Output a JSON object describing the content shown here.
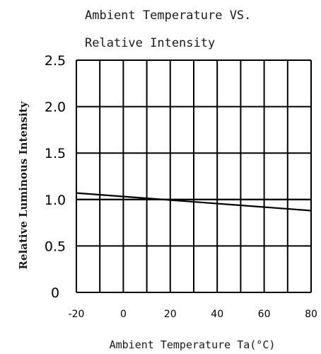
{
  "chart_data": {
    "type": "line",
    "title_lines": [
      "Ambient Temperature VS.",
      "Relative Intensity"
    ],
    "xlabel": "Ambient Temperature Ta(°C)",
    "ylabel": "Relative Luminous Intensity",
    "xlim": [
      -20,
      80
    ],
    "ylim": [
      0,
      2.5
    ],
    "x_ticks": [
      "-20",
      "0",
      "20",
      "40",
      "60",
      "80"
    ],
    "y_ticks": [
      "0",
      "0.5",
      "1.0",
      "1.5",
      "2.0",
      "2.5"
    ],
    "grid": true,
    "series": [
      {
        "x": [
          -20,
          80
        ],
        "y": [
          1.07,
          0.88
        ]
      },
      {
        "x": [
          -20,
          80
        ],
        "y": [
          1.0,
          1.0
        ]
      }
    ]
  },
  "colors": {
    "line": "#000000",
    "grid": "#000000",
    "text": "#1a1a1a"
  }
}
